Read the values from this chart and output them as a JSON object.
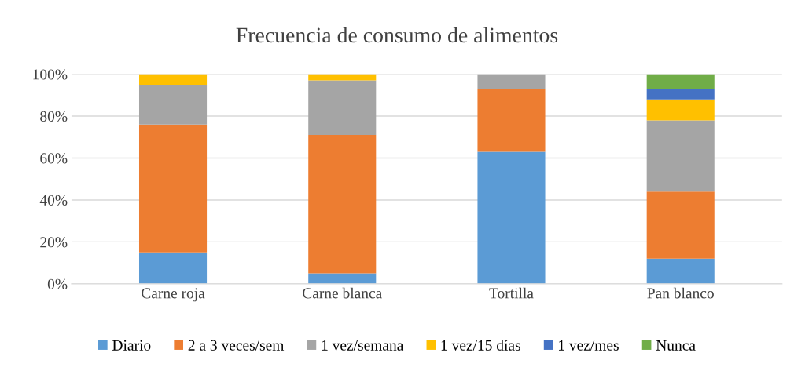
{
  "chart_data": {
    "type": "bar",
    "title": "Frecuencia de consumo de alimentos",
    "stacked": true,
    "categories": [
      "Carne roja",
      "Carne blanca",
      "Tortilla",
      "Pan blanco"
    ],
    "series": [
      {
        "name": "Diario",
        "color": "#5b9bd5",
        "values": [
          15,
          5,
          63,
          12
        ]
      },
      {
        "name": "2 a 3 veces/sem",
        "color": "#ed7d31",
        "values": [
          61,
          66,
          30,
          32
        ]
      },
      {
        "name": "1 vez/semana",
        "color": "#a5a5a5",
        "values": [
          19,
          26,
          7,
          34
        ]
      },
      {
        "name": "1 vez/15 días",
        "color": "#ffc000",
        "values": [
          5,
          3,
          0,
          10
        ]
      },
      {
        "name": "1 vez/mes",
        "color": "#4472c4",
        "values": [
          0,
          0,
          0,
          5
        ]
      },
      {
        "name": "Nunca",
        "color": "#70ad47",
        "values": [
          0,
          0,
          0,
          7
        ]
      }
    ],
    "ylim": [
      0,
      100
    ],
    "yticks": [
      {
        "value": 0,
        "label": "0%"
      },
      {
        "value": 20,
        "label": "20%"
      },
      {
        "value": 40,
        "label": "40%"
      },
      {
        "value": 60,
        "label": "60%"
      },
      {
        "value": 80,
        "label": "80%"
      },
      {
        "value": 100,
        "label": "100%"
      }
    ],
    "grid": "y",
    "legend": "bottom"
  }
}
